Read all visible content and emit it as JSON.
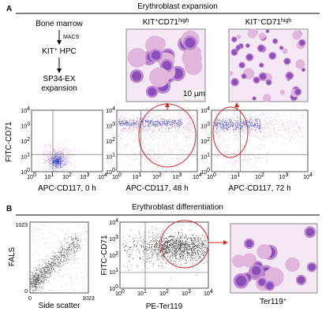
{
  "panel_a": {
    "letter": "A",
    "title": "Erythroblast expansion",
    "flowchart": {
      "step1": "Bone marrow",
      "method": "MACS",
      "step2": {
        "main": "KIT",
        "sup": "+",
        "rest": " HPC"
      },
      "step3": "SP34-EX",
      "step4": "expansion"
    },
    "images": [
      {
        "label": {
          "main": "KIT",
          "sup1": "+",
          "mid": "CD71",
          "sup2": "high"
        },
        "scale_bar": "10 µm"
      },
      {
        "label": {
          "main": "KIT",
          "sup1": "−",
          "mid": "CD71",
          "sup2": "high"
        }
      }
    ],
    "y_label": "FITC-CD71",
    "log_ticks": [
      {
        "base": "10",
        "exp": "0"
      },
      {
        "base": "10",
        "exp": "1"
      },
      {
        "base": "10",
        "exp": "2"
      },
      {
        "base": "10",
        "exp": "3"
      },
      {
        "base": "10",
        "exp": "4"
      }
    ],
    "plots": [
      {
        "x_label": "APC-CD117, 0 h"
      },
      {
        "x_label": "APC-CD117, 48 h"
      },
      {
        "x_label": "APC-CD117, 72 h"
      }
    ]
  },
  "panel_b": {
    "letter": "B",
    "title": "Erythroblast differentiation",
    "scatter_plot": {
      "y_label": "FALS",
      "x_label": "Side scatter",
      "min": "0",
      "max": "1023"
    },
    "log_plot": {
      "y_label": "FITC-CD71",
      "x_label": "PE-Ter119"
    },
    "image": {
      "label": {
        "main": "Ter119",
        "sup": "+"
      }
    }
  }
}
